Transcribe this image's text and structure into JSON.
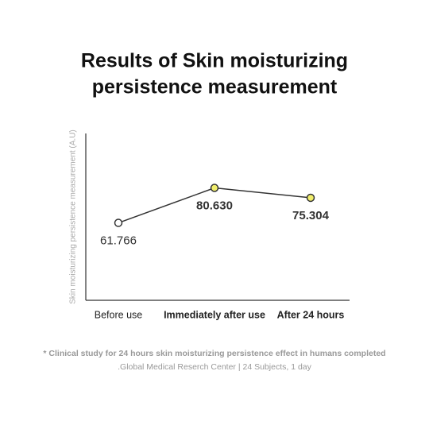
{
  "chart_data": {
    "type": "line",
    "title_lines": [
      "Results of Skin moisturizing",
      "persistence measurement"
    ],
    "y_label": "Skin moisturizing persistence measurement (A.U)",
    "categories": [
      "Before use",
      "Immediately after use",
      "After 24 hours"
    ],
    "values": [
      61.766,
      80.63,
      75.304
    ],
    "value_labels": [
      "61.766",
      "80.630",
      "75.304"
    ],
    "point_colors": [
      "#ffffff",
      "#f1ee6c",
      "#f1ee6c"
    ],
    "color": "#333333",
    "ylim": [
      20,
      110
    ],
    "notes": [
      "* Clinical study for 24 hours skin moisturizing persistence effect in humans completed",
      ".Global Medical Reserch Center | 24 Subjects, 1 day"
    ]
  }
}
